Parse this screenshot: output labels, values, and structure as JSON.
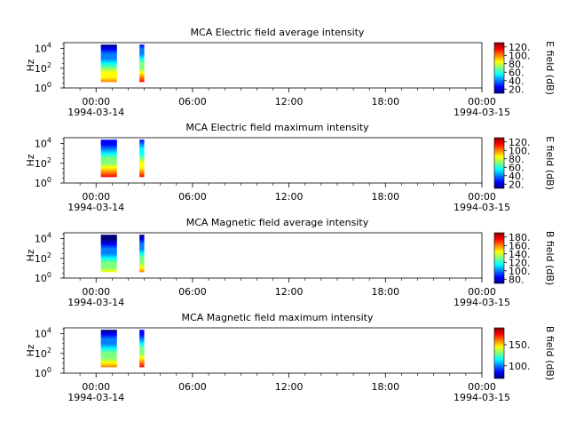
{
  "chart_data": [
    {
      "type": "heatmap",
      "title": "MCA  Electric field average intensity",
      "ylabel": "Hz",
      "y_ticks": [
        {
          "base": "10",
          "exp": "0"
        },
        {
          "base": "10",
          "exp": "2"
        },
        {
          "base": "10",
          "exp": "4"
        }
      ],
      "x_ticks": [
        "00:00",
        "06:00",
        "12:00",
        "18:00",
        "00:00"
      ],
      "x_dates": [
        "1994-03-14",
        "1994-03-15"
      ],
      "colorbar": {
        "label": "E field (dB)",
        "ticks": [
          "20.",
          "40.",
          "60.",
          "80.",
          "100.",
          "120."
        ],
        "range": [
          10,
          130
        ]
      },
      "data_blocks": [
        {
          "t_start_h": 0.3,
          "t_end_h": 1.3,
          "f_min_exp": 0.6,
          "f_max_exp": 4.4,
          "low_db": 110,
          "high_db": 20
        },
        {
          "t_start_h": 2.7,
          "t_end_h": 3.0,
          "f_min_exp": 0.6,
          "f_max_exp": 4.4,
          "low_db": 115,
          "high_db": 30
        }
      ]
    },
    {
      "type": "heatmap",
      "title": "MCA  Electric field maximum intensity",
      "ylabel": "Hz",
      "y_ticks": [
        {
          "base": "10",
          "exp": "0"
        },
        {
          "base": "10",
          "exp": "2"
        },
        {
          "base": "10",
          "exp": "4"
        }
      ],
      "x_ticks": [
        "00:00",
        "06:00",
        "12:00",
        "18:00",
        "00:00"
      ],
      "x_dates": [
        "1994-03-14",
        "1994-03-15"
      ],
      "colorbar": {
        "label": "E field (dB)",
        "ticks": [
          "20.",
          "40.",
          "60.",
          "80.",
          "100.",
          "120."
        ],
        "range": [
          10,
          130
        ]
      },
      "data_blocks": [
        {
          "t_start_h": 0.3,
          "t_end_h": 1.3,
          "f_min_exp": 0.6,
          "f_max_exp": 4.4,
          "low_db": 115,
          "high_db": 25
        },
        {
          "t_start_h": 2.7,
          "t_end_h": 3.0,
          "f_min_exp": 0.6,
          "f_max_exp": 4.4,
          "low_db": 120,
          "high_db": 35
        }
      ]
    },
    {
      "type": "heatmap",
      "title": "MCA  Magnetic field average intensity",
      "ylabel": "Hz",
      "y_ticks": [
        {
          "base": "10",
          "exp": "0"
        },
        {
          "base": "10",
          "exp": "2"
        },
        {
          "base": "10",
          "exp": "4"
        }
      ],
      "x_ticks": [
        "00:00",
        "06:00",
        "12:00",
        "18:00",
        "00:00"
      ],
      "x_dates": [
        "1994-03-14",
        "1994-03-15"
      ],
      "colorbar": {
        "label": "B field (dB)",
        "ticks": [
          "80.",
          "100.",
          "120.",
          "140.",
          "160.",
          "180."
        ],
        "range": [
          70,
          190
        ]
      },
      "data_blocks": [
        {
          "t_start_h": 0.3,
          "t_end_h": 1.3,
          "f_min_exp": 0.6,
          "f_max_exp": 4.4,
          "low_db": 150,
          "high_db": 75
        },
        {
          "t_start_h": 2.7,
          "t_end_h": 3.0,
          "f_min_exp": 0.6,
          "f_max_exp": 4.4,
          "low_db": 165,
          "high_db": 80
        }
      ]
    },
    {
      "type": "heatmap",
      "title": "MCA  Magnetic field maximum intensity",
      "ylabel": "Hz",
      "y_ticks": [
        {
          "base": "10",
          "exp": "0"
        },
        {
          "base": "10",
          "exp": "2"
        },
        {
          "base": "10",
          "exp": "4"
        }
      ],
      "x_ticks": [
        "00:00",
        "06:00",
        "12:00",
        "18:00",
        "00:00"
      ],
      "x_dates": [
        "1994-03-14",
        "1994-03-15"
      ],
      "colorbar": {
        "label": "B field (dB)",
        "ticks": [
          "100.",
          "150."
        ],
        "range": [
          70,
          190
        ]
      },
      "data_blocks": [
        {
          "t_start_h": 0.3,
          "t_end_h": 1.3,
          "f_min_exp": 0.6,
          "f_max_exp": 4.4,
          "low_db": 160,
          "high_db": 80
        },
        {
          "t_start_h": 2.7,
          "t_end_h": 3.0,
          "f_min_exp": 0.6,
          "f_max_exp": 4.4,
          "low_db": 180,
          "high_db": 85
        }
      ]
    }
  ],
  "colors": {
    "jet": [
      "#00007f",
      "#0000ff",
      "#007fff",
      "#00ffff",
      "#7fff7f",
      "#ffff00",
      "#ff7f00",
      "#ff0000",
      "#7f0000"
    ]
  }
}
